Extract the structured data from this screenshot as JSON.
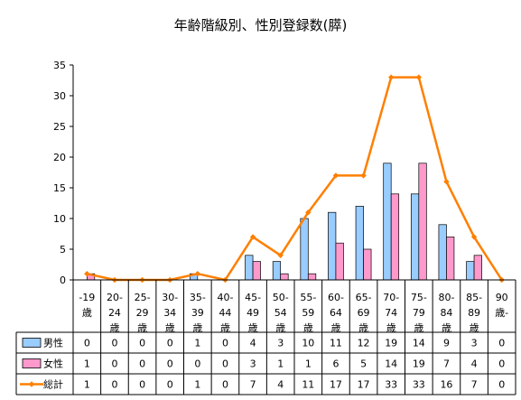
{
  "chart_data": {
    "type": "bar",
    "title": "年齢階級別、性別登録数(膵)",
    "categories": [
      [
        "-19",
        "歳"
      ],
      [
        "20-",
        "24",
        "歳"
      ],
      [
        "25-",
        "29",
        "歳"
      ],
      [
        "30-",
        "34",
        "歳"
      ],
      [
        "35-",
        "39",
        "歳"
      ],
      [
        "40-",
        "44",
        "歳"
      ],
      [
        "45-",
        "49",
        "歳"
      ],
      [
        "50-",
        "54",
        "歳"
      ],
      [
        "55-",
        "59",
        "歳"
      ],
      [
        "60-",
        "64",
        "歳"
      ],
      [
        "65-",
        "69",
        "歳"
      ],
      [
        "70-",
        "74",
        "歳"
      ],
      [
        "75-",
        "79",
        "歳"
      ],
      [
        "80-",
        "84",
        "歳"
      ],
      [
        "85-",
        "89",
        "歳"
      ],
      [
        "90",
        "歳-"
      ]
    ],
    "series": [
      {
        "name": "男性",
        "kind": "bar",
        "color": "#99ccff",
        "values": [
          0,
          0,
          0,
          0,
          1,
          0,
          4,
          3,
          10,
          11,
          12,
          19,
          14,
          9,
          3,
          0
        ]
      },
      {
        "name": "女性",
        "kind": "bar",
        "color": "#ff99cc",
        "values": [
          1,
          0,
          0,
          0,
          0,
          0,
          3,
          1,
          1,
          6,
          5,
          14,
          19,
          7,
          4,
          0
        ]
      },
      {
        "name": "総計",
        "kind": "line",
        "color": "#ff7f00",
        "values": [
          1,
          0,
          0,
          0,
          1,
          0,
          7,
          4,
          11,
          17,
          17,
          33,
          33,
          16,
          7,
          0
        ]
      }
    ],
    "ylim": [
      0,
      35
    ],
    "yticks": [
      0,
      5,
      10,
      15,
      20,
      25,
      30,
      35
    ],
    "grid": false,
    "legend": "data-table-left"
  }
}
